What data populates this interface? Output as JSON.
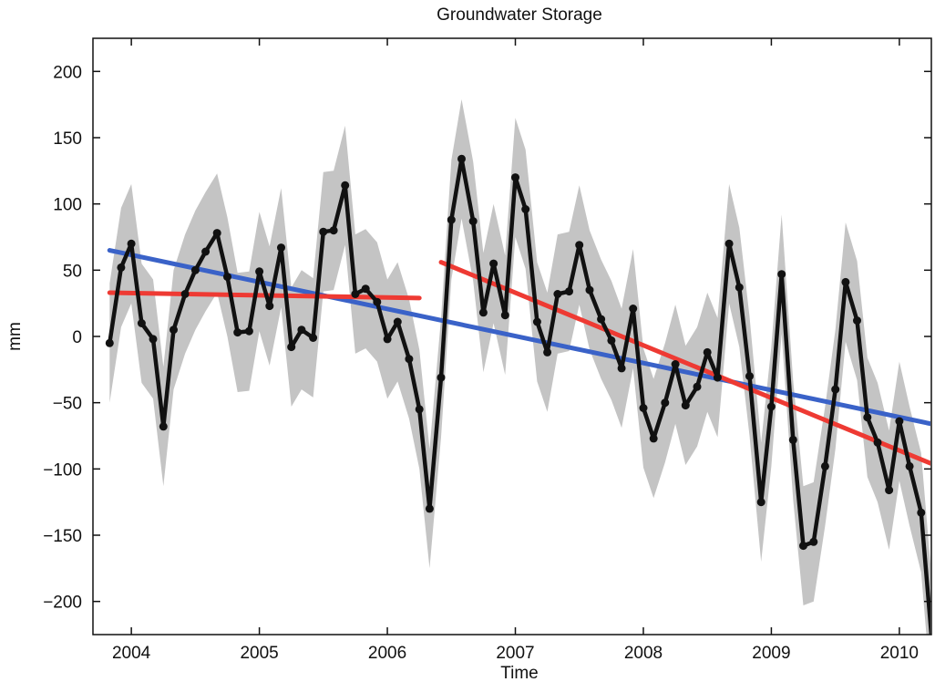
{
  "chart_data": {
    "type": "line",
    "title": "Groundwater Storage",
    "xlabel": "Time",
    "ylabel": "mm",
    "xlim": [
      2003.7,
      2010.25
    ],
    "ylim": [
      -225,
      225
    ],
    "xticks": [
      2004,
      2005,
      2006,
      2007,
      2008,
      2009,
      2010
    ],
    "yticks": [
      -200,
      -150,
      -100,
      -50,
      0,
      50,
      100,
      150,
      200
    ],
    "grid": false,
    "colors": {
      "series": "#111111",
      "band": "#c4c4c4",
      "trend_overall": "#3a62c8",
      "trend_segment": "#ee3a33"
    },
    "series": [
      {
        "values": [
          {
            "x": 2003.83,
            "y": -5
          },
          {
            "x": 2003.92,
            "y": 52
          },
          {
            "x": 2004.0,
            "y": 70
          },
          {
            "x": 2004.08,
            "y": 10
          },
          {
            "x": 2004.17,
            "y": -2
          },
          {
            "x": 2004.25,
            "y": -68
          },
          {
            "x": 2004.33,
            "y": 5
          },
          {
            "x": 2004.42,
            "y": 32
          },
          {
            "x": 2004.5,
            "y": 50
          },
          {
            "x": 2004.58,
            "y": 64
          },
          {
            "x": 2004.67,
            "y": 78
          },
          {
            "x": 2004.75,
            "y": 45
          },
          {
            "x": 2004.83,
            "y": 3
          },
          {
            "x": 2004.92,
            "y": 4
          },
          {
            "x": 2005.0,
            "y": 49
          },
          {
            "x": 2005.08,
            "y": 23
          },
          {
            "x": 2005.17,
            "y": 67
          },
          {
            "x": 2005.25,
            "y": -8
          },
          {
            "x": 2005.33,
            "y": 5
          },
          {
            "x": 2005.42,
            "y": -1
          },
          {
            "x": 2005.5,
            "y": 79
          },
          {
            "x": 2005.58,
            "y": 80
          },
          {
            "x": 2005.67,
            "y": 114
          },
          {
            "x": 2005.75,
            "y": 32
          },
          {
            "x": 2005.83,
            "y": 36
          },
          {
            "x": 2005.92,
            "y": 26
          },
          {
            "x": 2006.0,
            "y": -2
          },
          {
            "x": 2006.08,
            "y": 11
          },
          {
            "x": 2006.17,
            "y": -17
          },
          {
            "x": 2006.25,
            "y": -55
          },
          {
            "x": 2006.33,
            "y": -130
          },
          {
            "x": 2006.42,
            "y": -31
          },
          {
            "x": 2006.5,
            "y": 88
          },
          {
            "x": 2006.58,
            "y": 134
          },
          {
            "x": 2006.67,
            "y": 87
          },
          {
            "x": 2006.75,
            "y": 18
          },
          {
            "x": 2006.83,
            "y": 55
          },
          {
            "x": 2006.92,
            "y": 16
          },
          {
            "x": 2007.0,
            "y": 120
          },
          {
            "x": 2007.08,
            "y": 96
          },
          {
            "x": 2007.17,
            "y": 11
          },
          {
            "x": 2007.25,
            "y": -12
          },
          {
            "x": 2007.33,
            "y": 32
          },
          {
            "x": 2007.42,
            "y": 34
          },
          {
            "x": 2007.5,
            "y": 69
          },
          {
            "x": 2007.58,
            "y": 35
          },
          {
            "x": 2007.67,
            "y": 13
          },
          {
            "x": 2007.75,
            "y": -3
          },
          {
            "x": 2007.83,
            "y": -24
          },
          {
            "x": 2007.92,
            "y": 21
          },
          {
            "x": 2008.0,
            "y": -54
          },
          {
            "x": 2008.08,
            "y": -77
          },
          {
            "x": 2008.17,
            "y": -50
          },
          {
            "x": 2008.25,
            "y": -21
          },
          {
            "x": 2008.33,
            "y": -52
          },
          {
            "x": 2008.42,
            "y": -38
          },
          {
            "x": 2008.5,
            "y": -12
          },
          {
            "x": 2008.58,
            "y": -31
          },
          {
            "x": 2008.67,
            "y": 70
          },
          {
            "x": 2008.75,
            "y": 37
          },
          {
            "x": 2008.83,
            "y": -30
          },
          {
            "x": 2008.92,
            "y": -125
          },
          {
            "x": 2009.0,
            "y": -53
          },
          {
            "x": 2009.08,
            "y": 47
          },
          {
            "x": 2009.17,
            "y": -78
          },
          {
            "x": 2009.25,
            "y": -158
          },
          {
            "x": 2009.33,
            "y": -155
          },
          {
            "x": 2009.42,
            "y": -98
          },
          {
            "x": 2009.5,
            "y": -40
          },
          {
            "x": 2009.58,
            "y": 41
          },
          {
            "x": 2009.67,
            "y": 12
          },
          {
            "x": 2009.75,
            "y": -61
          },
          {
            "x": 2009.83,
            "y": -80
          },
          {
            "x": 2009.92,
            "y": -116
          },
          {
            "x": 2010.0,
            "y": -64
          },
          {
            "x": 2010.08,
            "y": -98
          },
          {
            "x": 2010.17,
            "y": -133
          },
          {
            "x": 2010.25,
            "y": -225
          }
        ],
        "uncertainty": 45
      }
    ],
    "trend_lines": [
      {
        "kind": "overall",
        "x": [
          2003.83,
          2010.25
        ],
        "y": [
          65,
          -66
        ]
      },
      {
        "kind": "segment",
        "x": [
          2003.83,
          2006.25
        ],
        "y": [
          33,
          29
        ]
      },
      {
        "kind": "segment",
        "x": [
          2006.42,
          2010.25
        ],
        "y": [
          56,
          -96
        ]
      }
    ]
  }
}
